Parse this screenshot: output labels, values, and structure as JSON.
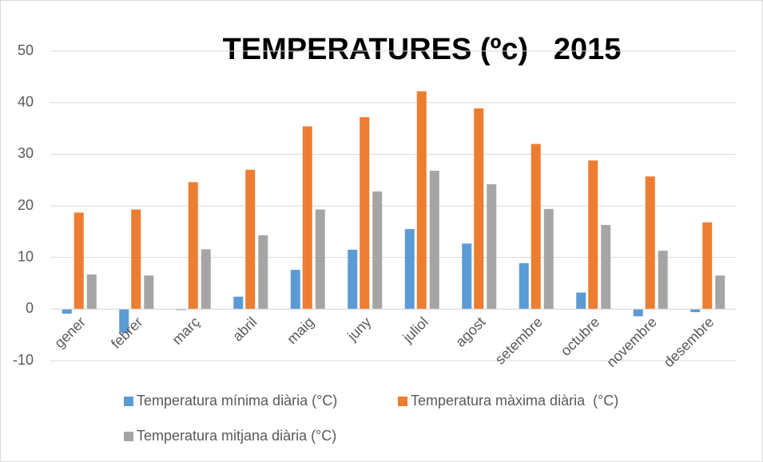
{
  "chart_data": {
    "type": "bar",
    "title": "TEMPERATURES (ºc)   2015",
    "categories": [
      "gener",
      "febrer",
      "març",
      "abril",
      "maig",
      "juny",
      "juliol",
      "agost",
      "setembre",
      "octubre",
      "novembre",
      "desembre"
    ],
    "series": [
      {
        "name": "Temperatura mínima diària (°C)",
        "color": "#5b9bd5",
        "values": [
          -0.9,
          -4.6,
          -0.2,
          2.4,
          7.6,
          11.5,
          15.5,
          12.7,
          8.9,
          3.2,
          -1.4,
          -0.6
        ]
      },
      {
        "name": "Temperatura màxima diària  (°C)",
        "color": "#ed7d31",
        "values": [
          18.7,
          19.3,
          24.6,
          27.0,
          35.4,
          37.2,
          42.2,
          38.9,
          32.0,
          28.8,
          25.7,
          16.8
        ]
      },
      {
        "name": "Temperatura mitjana diària (°C)",
        "color": "#a5a5a5",
        "values": [
          6.7,
          6.5,
          11.6,
          14.3,
          19.3,
          22.8,
          26.8,
          24.2,
          19.4,
          16.3,
          11.3,
          6.5
        ]
      }
    ],
    "ylim": [
      -10,
      50
    ],
    "yticks": [
      -10,
      0,
      10,
      20,
      30,
      40,
      50
    ],
    "grid": true
  }
}
